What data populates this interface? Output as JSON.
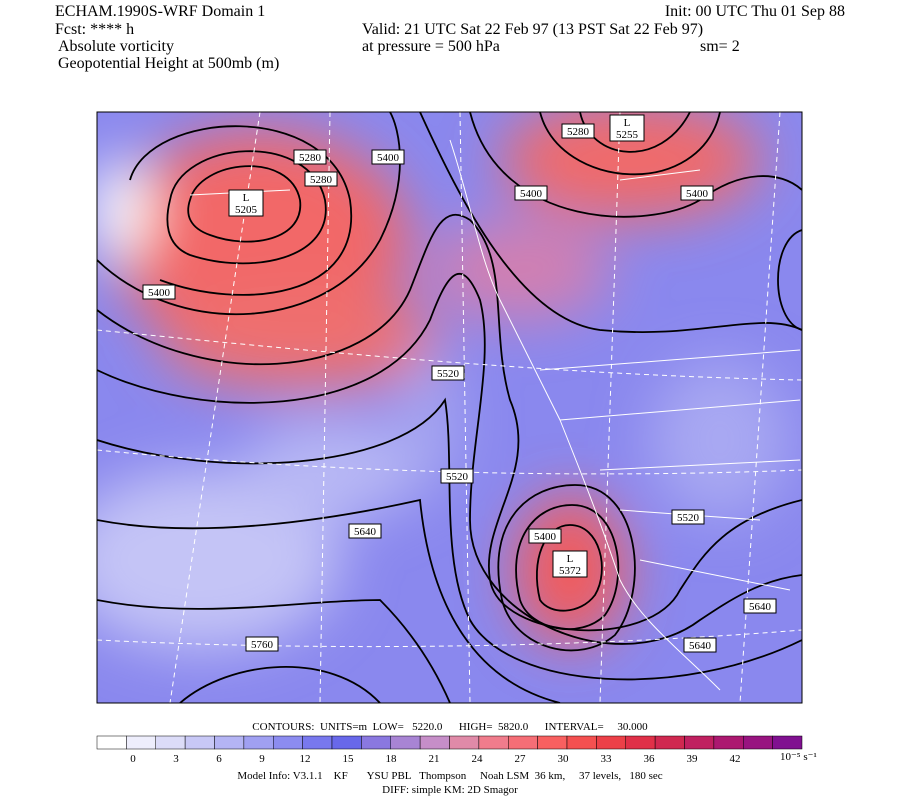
{
  "header": {
    "title": "ECHAM.1990S-WRF Domain 1",
    "forecast": "Fcst: **** h",
    "field1": "Absolute vorticity",
    "field2": "Geopotential Height at 500mb (m)",
    "init": "Init: 00 UTC Thu 01 Sep 88",
    "valid": "Valid: 21 UTC Sat 22 Feb 97 (13 PST Sat 22 Feb 97)",
    "pressure": "at pressure =  500 hPa",
    "smoothing": "sm= 2"
  },
  "map": {
    "contour_labels": [
      5280,
      5280,
      5400,
      5400,
      5280,
      5400,
      5400,
      5520,
      5520,
      5640,
      5400,
      5520,
      5640,
      5760,
      5640
    ],
    "lows": [
      {
        "mark": "L",
        "value": 5205
      },
      {
        "mark": "L",
        "value": 5255
      },
      {
        "mark": "L",
        "value": 5372
      }
    ]
  },
  "footer": {
    "contours": "CONTOURS:  UNITS=m  LOW=   5220.0      HIGH=  5820.0      INTERVAL=     30.000",
    "colorbar": {
      "ticks": [
        0,
        3,
        6,
        9,
        12,
        15,
        18,
        21,
        24,
        27,
        30,
        33,
        36,
        39,
        42
      ],
      "units": "10⁻⁵ s⁻¹",
      "colors": [
        "#ffffff",
        "#eeeefc",
        "#dcdcf8",
        "#c8c8f6",
        "#b4b4f4",
        "#a0a0f2",
        "#8c8cf0",
        "#7878ee",
        "#6868ea",
        "#8a78e0",
        "#a884d4",
        "#c68ec8",
        "#e08aa8",
        "#f07c8c",
        "#f56e76",
        "#f86060",
        "#f45050",
        "#ec4048",
        "#e03048",
        "#d02850",
        "#c02060",
        "#ac1870",
        "#981480",
        "#801090"
      ]
    },
    "model_info": "Model Info: V3.1.1    KF       YSU PBL   Thompson     Noah LSM  36 km,     37 levels,   180 sec",
    "diff": "DIFF: simple KM: 2D Smagor"
  }
}
